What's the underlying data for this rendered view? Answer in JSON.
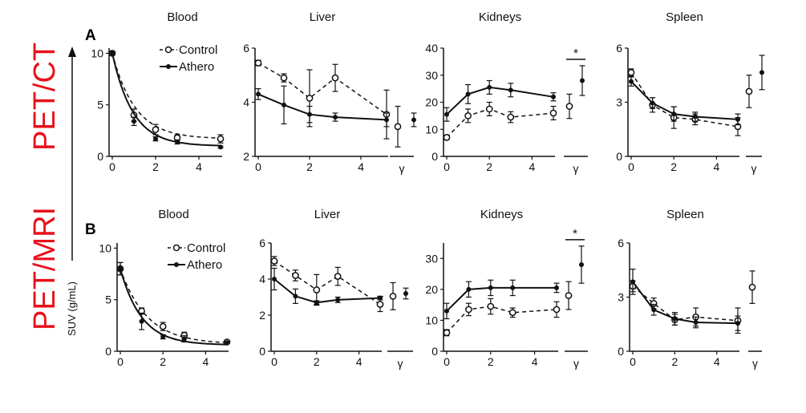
{
  "figure": {
    "panel_letters": [
      "A",
      "B"
    ],
    "modalities": [
      "PET/CT",
      "PET/MRI"
    ],
    "ylabel": "SUV (g/mL)",
    "gamma_label": "γ",
    "star_label": "*",
    "legend": {
      "control": "Control",
      "athero": "Athero"
    },
    "colors": {
      "modality": "#e8101a",
      "ink": "#111111"
    }
  },
  "chart_data": [
    {
      "type": "line",
      "row": 0,
      "title": "Blood",
      "xlabel": "",
      "ylabel": "SUV (g/mL)",
      "xlim": [
        0,
        5
      ],
      "ylim": [
        0,
        10.5
      ],
      "xticks": [
        0,
        2,
        4
      ],
      "yticks": [
        0,
        5,
        10
      ],
      "ytick_labels": [
        "0",
        "5",
        "10"
      ],
      "fit": "exponential",
      "series": [
        {
          "name": "Control",
          "x": [
            0,
            1,
            2,
            3,
            5
          ],
          "y": [
            10.0,
            4.0,
            2.6,
            1.8,
            1.7
          ],
          "err": [
            0.2,
            0.6,
            0.5,
            0.3,
            0.4
          ],
          "fit": {
            "a": 8.3,
            "k": 0.95,
            "c": 1.7
          }
        },
        {
          "name": "Athero",
          "x": [
            0,
            1,
            2,
            3,
            5
          ],
          "y": [
            10.0,
            3.4,
            1.7,
            1.4,
            0.9
          ],
          "err": [
            0.2,
            0.4,
            0.2,
            0.2,
            0.1
          ],
          "fit": {
            "a": 9.0,
            "k": 1.05,
            "c": 1.0
          }
        }
      ]
    },
    {
      "type": "line",
      "row": 0,
      "title": "Liver",
      "xlabel": "",
      "ylabel": "",
      "xlim": [
        0,
        5
      ],
      "ylim": [
        2,
        6
      ],
      "xticks": [
        0,
        2,
        4
      ],
      "yticks": [
        2,
        4,
        6
      ],
      "ytick_labels": [
        "2",
        "4",
        "6"
      ],
      "gamma": true,
      "gamma_ylim": [
        2,
        6
      ],
      "series": [
        {
          "name": "Control",
          "x": [
            0,
            1,
            2,
            3,
            5
          ],
          "y": [
            5.45,
            4.9,
            4.15,
            4.9,
            3.55
          ],
          "err": [
            0.1,
            0.15,
            1.05,
            0.5,
            0.9
          ],
          "gamma": {
            "y": 3.1,
            "err": 0.75
          }
        },
        {
          "name": "Athero",
          "x": [
            0,
            1,
            2,
            3,
            5
          ],
          "y": [
            4.3,
            3.9,
            3.55,
            3.45,
            3.35
          ],
          "err": [
            0.2,
            0.7,
            0.3,
            0.15,
            0.25
          ],
          "gamma": {
            "y": 3.35,
            "err": 0.25
          }
        }
      ]
    },
    {
      "type": "line",
      "row": 0,
      "title": "Kidneys",
      "xlabel": "",
      "ylabel": "",
      "xlim": [
        0,
        5
      ],
      "ylim": [
        0,
        40
      ],
      "xticks": [
        0,
        2,
        4
      ],
      "yticks": [
        0,
        10,
        20,
        30,
        40
      ],
      "ytick_labels": [
        "0",
        "10",
        "20",
        "30",
        "40"
      ],
      "gamma": true,
      "gamma_ylim": [
        0,
        40
      ],
      "significance": "*",
      "series": [
        {
          "name": "Control",
          "x": [
            0,
            1,
            2,
            3,
            5
          ],
          "y": [
            7,
            15,
            17.5,
            14.5,
            16
          ],
          "err": [
            0.8,
            2.5,
            2.5,
            2.0,
            2.5
          ],
          "gamma": {
            "y": 18.5,
            "err": 4.5
          }
        },
        {
          "name": "Athero",
          "x": [
            0,
            1,
            2,
            3,
            5
          ],
          "y": [
            15.5,
            23,
            25.5,
            24.5,
            22
          ],
          "err": [
            2.5,
            3.5,
            2.5,
            2.5,
            1.5
          ],
          "gamma": {
            "y": 28,
            "err": 5.5
          }
        }
      ]
    },
    {
      "type": "line",
      "row": 0,
      "title": "Spleen",
      "xlabel": "",
      "ylabel": "",
      "xlim": [
        0,
        5
      ],
      "ylim": [
        0,
        6
      ],
      "xticks": [
        0,
        2,
        4
      ],
      "yticks": [
        0,
        3,
        6
      ],
      "ytick_labels": [
        "0",
        "3",
        "6"
      ],
      "gamma": true,
      "gamma_ylim": [
        0,
        6
      ],
      "series": [
        {
          "name": "Control",
          "x": [
            0,
            1,
            2,
            3,
            5
          ],
          "y": [
            4.65,
            2.85,
            2.15,
            2.05,
            1.65
          ],
          "err": [
            0.2,
            0.4,
            0.6,
            0.3,
            0.5
          ],
          "gamma": {
            "y": 3.6,
            "err": 0.9
          }
        },
        {
          "name": "Athero",
          "x": [
            0,
            1,
            2,
            3,
            5
          ],
          "y": [
            4.15,
            2.95,
            2.35,
            2.2,
            2.05
          ],
          "err": [
            0.25,
            0.3,
            0.4,
            0.25,
            0.3
          ],
          "gamma": {
            "y": 4.65,
            "err": 0.95
          }
        }
      ]
    },
    {
      "type": "line",
      "row": 1,
      "title": "Blood",
      "xlabel": "",
      "ylabel": "",
      "xlim": [
        0,
        5
      ],
      "ylim": [
        0,
        10.5
      ],
      "xticks": [
        0,
        2,
        4
      ],
      "yticks": [
        0,
        5,
        10
      ],
      "ytick_labels": [
        "0",
        "5",
        "10"
      ],
      "fit": "exponential",
      "series": [
        {
          "name": "Control",
          "x": [
            0,
            1,
            2,
            3,
            5
          ],
          "y": [
            8.0,
            3.9,
            2.4,
            1.55,
            0.9
          ],
          "err": [
            0.6,
            0.3,
            0.4,
            0.3,
            0.1
          ],
          "fit": {
            "a": 7.3,
            "k": 0.8,
            "c": 0.7
          }
        },
        {
          "name": "Athero",
          "x": [
            0,
            1,
            2,
            3,
            5
          ],
          "y": [
            8.0,
            2.9,
            1.4,
            1.2,
            0.85
          ],
          "err": [
            0.6,
            0.8,
            0.2,
            0.3,
            0.1
          ],
          "fit": {
            "a": 7.4,
            "k": 1.0,
            "c": 0.6
          }
        }
      ]
    },
    {
      "type": "line",
      "row": 1,
      "title": "Liver",
      "xlabel": "",
      "ylabel": "",
      "xlim": [
        0,
        5
      ],
      "ylim": [
        0,
        6
      ],
      "xticks": [
        0,
        2,
        4
      ],
      "yticks": [
        0,
        2,
        4,
        6
      ],
      "ytick_labels": [
        "0",
        "2",
        "4",
        "6"
      ],
      "gamma": true,
      "gamma_ylim": [
        0,
        6
      ],
      "series": [
        {
          "name": "Control",
          "x": [
            0,
            1,
            2,
            3,
            5
          ],
          "y": [
            5.0,
            4.2,
            3.4,
            4.15,
            2.6
          ],
          "err": [
            0.25,
            0.3,
            0.85,
            0.5,
            0.4
          ],
          "gamma": {
            "y": 3.05,
            "err": 0.75
          }
        },
        {
          "name": "Athero",
          "x": [
            0,
            1,
            2,
            3,
            5
          ],
          "y": [
            4.0,
            3.05,
            2.7,
            2.85,
            2.95
          ],
          "err": [
            0.6,
            0.4,
            0.1,
            0.15,
            0.1
          ],
          "gamma": {
            "y": 3.2,
            "err": 0.3
          }
        }
      ]
    },
    {
      "type": "line",
      "row": 1,
      "title": "Kidneys",
      "xlabel": "",
      "ylabel": "",
      "xlim": [
        0,
        5
      ],
      "ylim": [
        0,
        35
      ],
      "xticks": [
        0,
        2,
        4
      ],
      "yticks": [
        0,
        10,
        20,
        30
      ],
      "ytick_labels": [
        "0",
        "10",
        "20",
        "30"
      ],
      "gamma": true,
      "gamma_ylim": [
        0,
        35
      ],
      "significance": "*",
      "series": [
        {
          "name": "Control",
          "x": [
            0,
            1,
            2,
            3,
            5
          ],
          "y": [
            6,
            13.5,
            14.5,
            12.5,
            13.5
          ],
          "err": [
            1.0,
            2.0,
            2.5,
            1.5,
            2.5
          ],
          "gamma": {
            "y": 18,
            "err": 4.5
          }
        },
        {
          "name": "Athero",
          "x": [
            0,
            1,
            2,
            3,
            5
          ],
          "y": [
            13,
            20,
            20.5,
            20.5,
            20.5
          ],
          "err": [
            2.5,
            2.5,
            2.5,
            2.5,
            1.5
          ],
          "gamma": {
            "y": 28,
            "err": 6
          }
        }
      ]
    },
    {
      "type": "line",
      "row": 1,
      "title": "Spleen",
      "xlabel": "",
      "ylabel": "",
      "xlim": [
        0,
        5
      ],
      "ylim": [
        0,
        6
      ],
      "xticks": [
        0,
        2,
        4
      ],
      "yticks": [
        0,
        3,
        6
      ],
      "ytick_labels": [
        "0",
        "3",
        "6"
      ],
      "gamma": true,
      "gamma_ylim": [
        0,
        6
      ],
      "series": [
        {
          "name": "Control",
          "x": [
            0,
            1,
            2,
            3,
            5
          ],
          "y": [
            3.6,
            2.65,
            1.75,
            1.9,
            1.7
          ],
          "err": [
            0.3,
            0.3,
            0.3,
            0.5,
            0.7
          ],
          "gamma": {
            "y": 3.55,
            "err": 0.9
          }
        },
        {
          "name": "Athero",
          "x": [
            0,
            1,
            2,
            3,
            5
          ],
          "y": [
            3.85,
            2.3,
            1.8,
            1.6,
            1.55
          ],
          "err": [
            0.7,
            0.3,
            0.35,
            0.3,
            0.4
          ]
        }
      ]
    }
  ]
}
